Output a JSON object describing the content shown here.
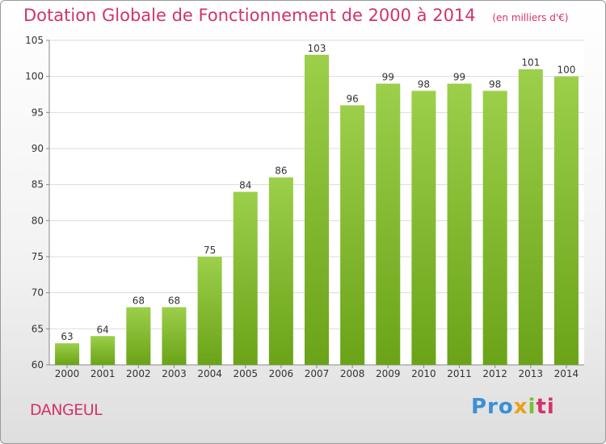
{
  "chart_data": {
    "type": "bar",
    "title": "Dotation Globale de Fonctionnement de 2000 à 2014",
    "subtitle": "(en milliers d'€)",
    "categories": [
      "2000",
      "2001",
      "2002",
      "2003",
      "2004",
      "2005",
      "2006",
      "2007",
      "2008",
      "2009",
      "2010",
      "2011",
      "2012",
      "2013",
      "2014"
    ],
    "values": [
      63,
      64,
      68,
      68,
      75,
      84,
      86,
      103,
      96,
      99,
      98,
      99,
      98,
      101,
      100
    ],
    "ylim": [
      60,
      105
    ],
    "yticks": [
      60,
      65,
      70,
      75,
      80,
      85,
      90,
      95,
      100,
      105
    ],
    "grid": true,
    "bar_color": "#8cc43c"
  },
  "footer": {
    "commune": "DANGEUL",
    "logo_parts": [
      "Pro",
      "x",
      "i",
      "ti"
    ]
  }
}
